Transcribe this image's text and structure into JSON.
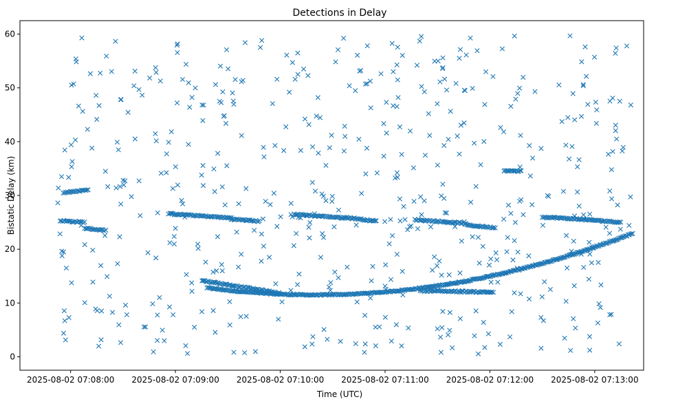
{
  "chart_data": {
    "type": "scatter",
    "title": "Detections in Delay",
    "xlabel": "Time (UTC)",
    "ylabel": "Bistatic Delay (km)",
    "marker": "x",
    "color": "#1f77b4",
    "xlim_seconds_from_0708": [
      -29,
      328
    ],
    "ylim": [
      -2.5,
      62.5
    ],
    "x_ticks": [
      {
        "value": 0,
        "label": "2025-08-02 07:08:00"
      },
      {
        "value": 60,
        "label": "2025-08-02 07:09:00"
      },
      {
        "value": 120,
        "label": "2025-08-02 07:10:00"
      },
      {
        "value": 180,
        "label": "2025-08-02 07:11:00"
      },
      {
        "value": 240,
        "label": "2025-08-02 07:12:00"
      },
      {
        "value": 300,
        "label": "2025-08-02 07:13:00"
      }
    ],
    "y_ticks": [
      0,
      10,
      20,
      30,
      40,
      50,
      60
    ],
    "x_range_seconds": [
      -8,
      322
    ],
    "series": [
      {
        "name": "target-track-curve",
        "x_start": 78,
        "x_end": 322,
        "shape": "quadratic",
        "vertex_x": 140,
        "vertex_y": 11.5,
        "end_y": 23.0,
        "step": 0.6
      },
      {
        "name": "upper-track-1",
        "segments": [
          {
            "x0": -6,
            "x1": 8,
            "y0": 25.3,
            "y1": 25.0
          },
          {
            "x0": 8,
            "x1": 20,
            "y0": 23.9,
            "y1": 23.5
          },
          {
            "x0": 56,
            "x1": 92,
            "y0": 26.6,
            "y1": 25.8
          },
          {
            "x0": 92,
            "x1": 108,
            "y0": 25.6,
            "y1": 25.2
          },
          {
            "x0": 128,
            "x1": 158,
            "y0": 26.5,
            "y1": 25.8
          },
          {
            "x0": 158,
            "x1": 175,
            "y0": 25.9,
            "y1": 25.2
          },
          {
            "x0": 197,
            "x1": 226,
            "y0": 25.5,
            "y1": 24.8
          },
          {
            "x0": 226,
            "x1": 243,
            "y0": 24.5,
            "y1": 24.0
          },
          {
            "x0": 270,
            "x1": 295,
            "y0": 26.0,
            "y1": 25.5
          },
          {
            "x0": 295,
            "x1": 315,
            "y0": 25.5,
            "y1": 25.0
          }
        ]
      },
      {
        "name": "lower-track-1",
        "segments": [
          {
            "x0": 75,
            "x1": 120,
            "y0": 14.2,
            "y1": 11.8
          },
          {
            "x0": 200,
            "x1": 242,
            "y0": 12.3,
            "y1": 12.0
          }
        ]
      },
      {
        "name": "side-track",
        "segments": [
          {
            "x0": -4,
            "x1": 10,
            "y0": 30.5,
            "y1": 31.0
          },
          {
            "x0": 248,
            "x1": 258,
            "y0": 34.6,
            "y1": 34.5
          }
        ]
      },
      {
        "name": "noise",
        "count": 560,
        "seed": 12345
      }
    ]
  }
}
